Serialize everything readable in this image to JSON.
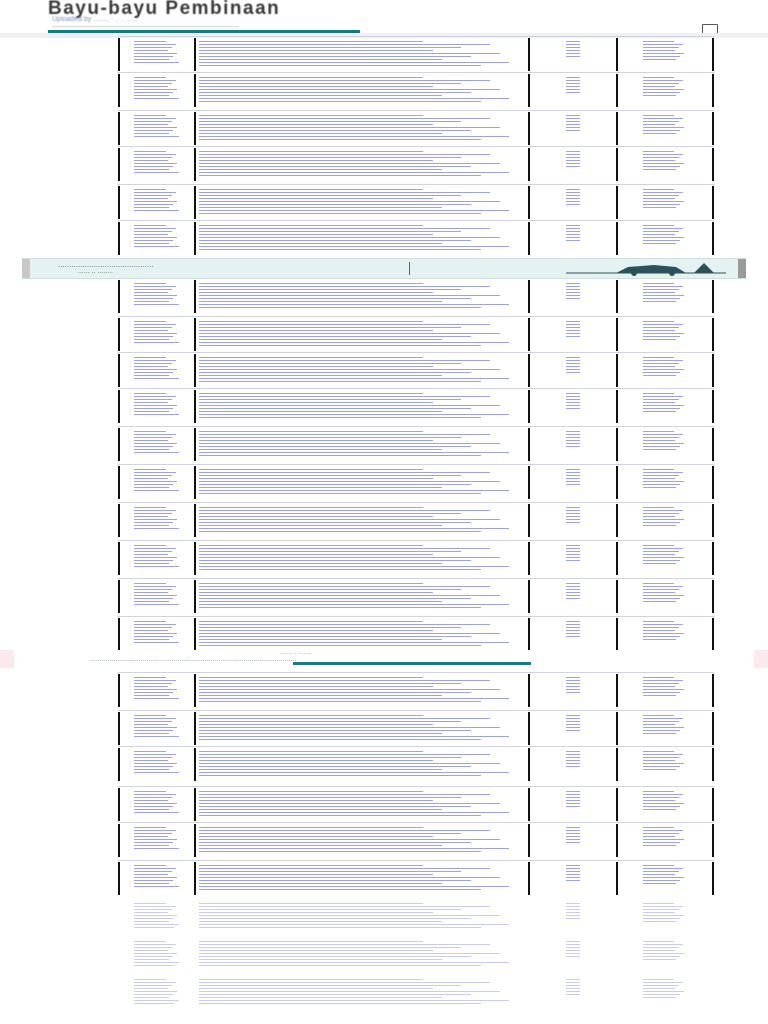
{
  "document": {
    "title": "Bayu-bayu Pembinaan",
    "uploaded_by": "Uploaded by ........  ·  ..  ..  ......",
    "description": "................................................................................................................"
  },
  "header": {
    "progress_percent": 48,
    "menu_icon": "document-icon"
  },
  "ad_banner": {
    "headline": "...........................................",
    "subtext": "......  ..  ........",
    "graphic_icon": "vehicle-graphic-icon",
    "colors": {
      "background": "#e6f2f2",
      "accent": "#167a84"
    }
  },
  "page_break": {
    "top_text": ".......  ..  ........",
    "text": "..........................................................................................................",
    "progress_percent": 100
  },
  "table": {
    "columns": [
      "",
      "",
      "",
      ""
    ],
    "line_color": "#8c8fe6",
    "row_count_page1": 16,
    "row_count_page2": 6
  },
  "colors": {
    "accent": "#167a84",
    "text_lines": "#8c8fe6",
    "row_border": "#111111"
  }
}
